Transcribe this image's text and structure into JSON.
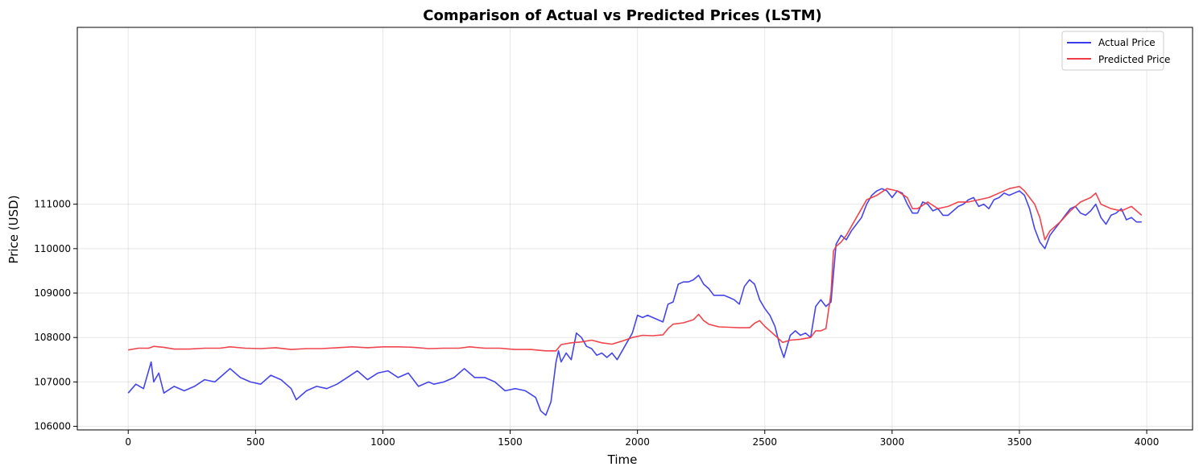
{
  "chart_data": {
    "type": "line",
    "title": "Comparison of Actual vs Predicted Prices (LSTM)",
    "xlabel": "Time",
    "ylabel": "Price (USD)",
    "xlim": [
      -200,
      4180
    ],
    "ylim": [
      105920,
      114980
    ],
    "x_ticks": [
      0,
      500,
      1000,
      1500,
      2000,
      2500,
      3000,
      3500,
      4000
    ],
    "x_tick_labels": [
      "0",
      "500",
      "1000",
      "1500",
      "2000",
      "2500",
      "3000",
      "3500",
      "4000"
    ],
    "y_ticks": [
      106000,
      107000,
      108000,
      109000,
      110000,
      111000
    ],
    "y_tick_labels": [
      "106000",
      "107000",
      "108000",
      "109000",
      "110000",
      "111000"
    ],
    "grid": true,
    "legend_position": "top-right",
    "series": [
      {
        "name": "Actual Price",
        "color": "#3b3bea",
        "x": [
          0,
          30,
          60,
          90,
          100,
          120,
          140,
          180,
          220,
          260,
          300,
          340,
          380,
          400,
          440,
          480,
          520,
          560,
          600,
          640,
          660,
          700,
          740,
          780,
          820,
          860,
          900,
          940,
          980,
          1020,
          1060,
          1100,
          1140,
          1180,
          1200,
          1240,
          1280,
          1320,
          1360,
          1400,
          1440,
          1480,
          1520,
          1560,
          1600,
          1620,
          1640,
          1660,
          1680,
          1690,
          1700,
          1720,
          1740,
          1760,
          1780,
          1800,
          1820,
          1840,
          1860,
          1880,
          1900,
          1920,
          1940,
          1960,
          1980,
          2000,
          2020,
          2040,
          2060,
          2080,
          2100,
          2120,
          2140,
          2160,
          2180,
          2200,
          2220,
          2240,
          2260,
          2280,
          2300,
          2320,
          2340,
          2360,
          2380,
          2400,
          2420,
          2440,
          2460,
          2480,
          2500,
          2520,
          2540,
          2560,
          2575,
          2600,
          2620,
          2640,
          2660,
          2680,
          2700,
          2720,
          2740,
          2760,
          2780,
          2800,
          2820,
          2840,
          2860,
          2880,
          2900,
          2920,
          2940,
          2960,
          2980,
          3000,
          3020,
          3040,
          3060,
          3080,
          3100,
          3120,
          3140,
          3160,
          3180,
          3200,
          3220,
          3240,
          3260,
          3280,
          3300,
          3320,
          3340,
          3360,
          3380,
          3400,
          3420,
          3440,
          3460,
          3480,
          3500,
          3520,
          3540,
          3560,
          3580,
          3600,
          3620,
          3640,
          3660,
          3680,
          3700,
          3720,
          3740,
          3760,
          3780,
          3800,
          3820,
          3840,
          3860,
          3880,
          3900,
          3920,
          3940,
          3960,
          3980
        ],
        "y": [
          106750,
          106950,
          106850,
          107450,
          107000,
          107200,
          106750,
          106900,
          106800,
          106900,
          107050,
          107000,
          107200,
          107300,
          107100,
          107000,
          106950,
          107150,
          107050,
          106850,
          106600,
          106800,
          106900,
          106850,
          106950,
          107100,
          107250,
          107050,
          107200,
          107250,
          107100,
          107200,
          106900,
          107000,
          106950,
          107000,
          107100,
          107300,
          107100,
          107100,
          107000,
          106800,
          106850,
          106800,
          106650,
          106350,
          106250,
          106550,
          107450,
          107700,
          107450,
          107650,
          107500,
          108100,
          108000,
          107800,
          107750,
          107600,
          107650,
          107550,
          107650,
          107500,
          107700,
          107900,
          108100,
          108500,
          108450,
          108500,
          108450,
          108400,
          108350,
          108750,
          108800,
          109200,
          109250,
          109250,
          109300,
          109400,
          109200,
          109100,
          108950,
          108950,
          108950,
          108900,
          108850,
          108750,
          109150,
          109300,
          109200,
          108850,
          108650,
          108500,
          108250,
          107800,
          107550,
          108050,
          108150,
          108050,
          108100,
          108000,
          108700,
          108850,
          108700,
          108800,
          110100,
          110300,
          110200,
          110400,
          110550,
          110700,
          111000,
          111200,
          111300,
          111350,
          111300,
          111150,
          111300,
          111250,
          111000,
          110800,
          110800,
          111050,
          111000,
          110850,
          110900,
          110750,
          110750,
          110850,
          110950,
          111000,
          111100,
          111150,
          110950,
          111000,
          110900,
          111100,
          111150,
          111250,
          111200,
          111250,
          111300,
          111200,
          110900,
          110450,
          110150,
          110000,
          110300,
          110450,
          110600,
          110750,
          110900,
          110950,
          110800,
          110750,
          110850,
          111000,
          110700,
          110550,
          110750,
          110800,
          110900,
          110650,
          110700,
          110600,
          110600
        ]
      },
      {
        "name": "Predicted Price",
        "color": "#ee3b44",
        "x": [
          0,
          40,
          80,
          100,
          140,
          180,
          240,
          300,
          360,
          400,
          460,
          520,
          580,
          640,
          700,
          760,
          820,
          880,
          940,
          1000,
          1060,
          1120,
          1180,
          1240,
          1300,
          1340,
          1400,
          1460,
          1520,
          1580,
          1640,
          1680,
          1700,
          1740,
          1780,
          1820,
          1860,
          1900,
          1940,
          1980,
          2020,
          2060,
          2100,
          2120,
          2140,
          2180,
          2220,
          2240,
          2260,
          2280,
          2320,
          2360,
          2400,
          2440,
          2460,
          2480,
          2500,
          2540,
          2570,
          2600,
          2640,
          2680,
          2700,
          2720,
          2740,
          2760,
          2770,
          2780,
          2800,
          2820,
          2840,
          2860,
          2880,
          2900,
          2940,
          2980,
          3020,
          3060,
          3080,
          3100,
          3140,
          3180,
          3220,
          3260,
          3300,
          3340,
          3380,
          3420,
          3460,
          3500,
          3520,
          3560,
          3580,
          3600,
          3620,
          3660,
          3700,
          3740,
          3780,
          3800,
          3820,
          3860,
          3900,
          3940,
          3960,
          3980
        ],
        "y": [
          107720,
          107760,
          107760,
          107800,
          107780,
          107740,
          107740,
          107760,
          107760,
          107790,
          107760,
          107750,
          107770,
          107730,
          107750,
          107750,
          107770,
          107790,
          107770,
          107790,
          107790,
          107780,
          107750,
          107760,
          107760,
          107790,
          107760,
          107760,
          107730,
          107730,
          107700,
          107700,
          107840,
          107880,
          107900,
          107940,
          107880,
          107850,
          107920,
          108000,
          108050,
          108040,
          108060,
          108200,
          108300,
          108330,
          108400,
          108520,
          108380,
          108300,
          108240,
          108230,
          108220,
          108220,
          108320,
          108380,
          108250,
          108050,
          107890,
          107940,
          107960,
          108000,
          108150,
          108150,
          108200,
          109000,
          109950,
          110050,
          110150,
          110300,
          110500,
          110700,
          110900,
          111100,
          111200,
          111350,
          111300,
          111150,
          110900,
          110900,
          111050,
          110900,
          110950,
          111050,
          111050,
          111100,
          111150,
          111250,
          111350,
          111400,
          111300,
          111000,
          110700,
          110200,
          110400,
          110600,
          110850,
          111050,
          111150,
          111250,
          111000,
          110900,
          110850,
          110950,
          110850,
          110750
        ]
      }
    ]
  }
}
